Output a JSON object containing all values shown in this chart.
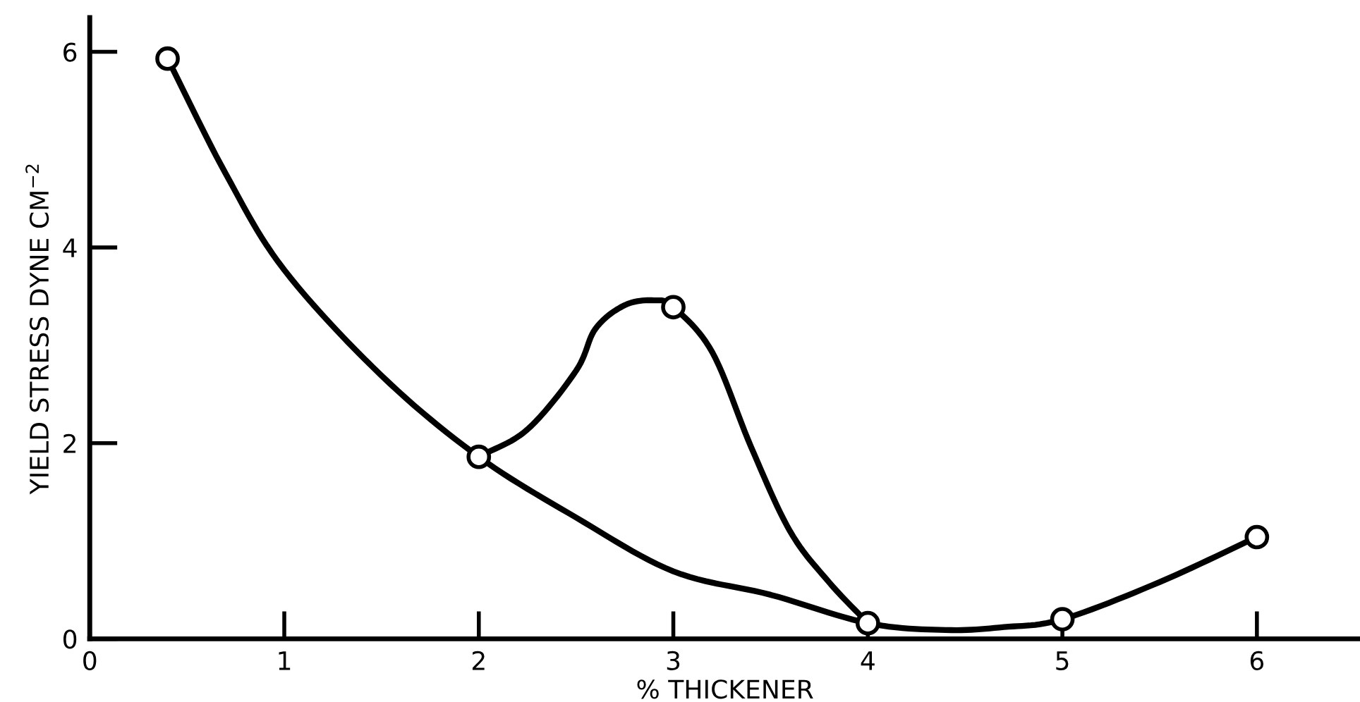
{
  "chart_data": {
    "type": "line",
    "xlabel": "% THICKENER",
    "ylabel": "YIELD STRESS DYNE CM$^{−2}$",
    "xlim": [
      0,
      6.53
    ],
    "ylim": [
      0,
      6.35
    ],
    "xticks": [
      0,
      1,
      2,
      3,
      4,
      5,
      6
    ],
    "yticks": [
      0,
      2,
      4,
      6
    ],
    "grid": false,
    "legend": false,
    "series": [
      {
        "color": "#000000",
        "marker": "none",
        "line_style": "solid",
        "x": [
          0.4,
          0.7,
          1,
          1.5,
          2,
          2.5,
          3,
          3.5,
          4,
          4.4,
          4.7,
          5,
          5.5,
          6
        ],
        "values": [
          5.93,
          4.75,
          3.77,
          2.69,
          1.86,
          1.24,
          0.69,
          0.45,
          0.16,
          0.09,
          0.12,
          0.2,
          0.58,
          1.04
        ]
      },
      {
        "color": "#000000",
        "marker": "none",
        "line_style": "solid",
        "x": [
          2,
          2.25,
          2.5,
          2.6,
          2.75,
          2.9,
          3,
          3.2,
          3.4,
          3.6,
          3.8,
          4
        ],
        "values": [
          1.86,
          2.14,
          2.74,
          3.17,
          3.41,
          3.46,
          3.39,
          2.93,
          1.96,
          1.1,
          0.58,
          0.16
        ]
      },
      {
        "type": "scatter",
        "color": "#000000",
        "marker": "circle",
        "x": [
          0.4,
          2,
          3,
          4,
          5,
          6
        ],
        "values": [
          5.93,
          1.86,
          3.39,
          0.16,
          0.2,
          1.04
        ]
      }
    ]
  }
}
